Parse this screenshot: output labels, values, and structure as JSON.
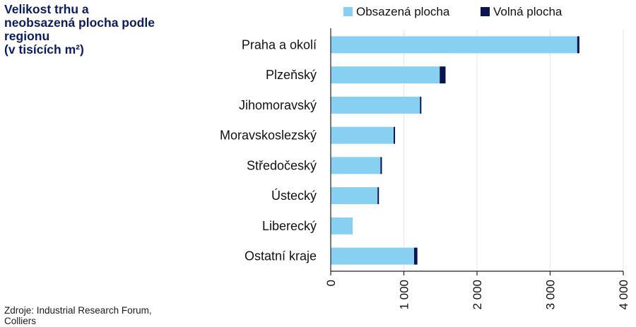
{
  "title_lines": [
    "Velikost trhu a",
    "neobsazená plocha podle",
    "regionu",
    "(v tisících m²)"
  ],
  "source_lines": [
    "Zdroje: Industrial Research Forum,",
    "Colliers"
  ],
  "colors": {
    "occupied": "#87d0f2",
    "vacant": "#0b1452",
    "grid": "#e6e6e6",
    "axis": "#222222",
    "title": "#0b1d5c"
  },
  "chart_data": {
    "type": "bar",
    "orientation": "horizontal",
    "stacked": true,
    "categories": [
      "Praha a okolí",
      "Plzeňský",
      "Jihomoravský",
      "Moravskoslezský",
      "Středočeský",
      "Ústecký",
      "Liberecký",
      "Ostatní kraje"
    ],
    "series": [
      {
        "name": "Obsazená plocha",
        "values": [
          3370,
          1490,
          1220,
          860,
          680,
          640,
          300,
          1140
        ]
      },
      {
        "name": "Volná plocha",
        "values": [
          30,
          80,
          15,
          15,
          20,
          5,
          0,
          45
        ]
      }
    ],
    "xlim": [
      0,
      4000
    ],
    "xticks": [
      "0",
      "1 000",
      "2 000",
      "3 000",
      "4 000"
    ],
    "tick_label_rotation": -90,
    "legend_position": "top",
    "grid": "vertical"
  }
}
